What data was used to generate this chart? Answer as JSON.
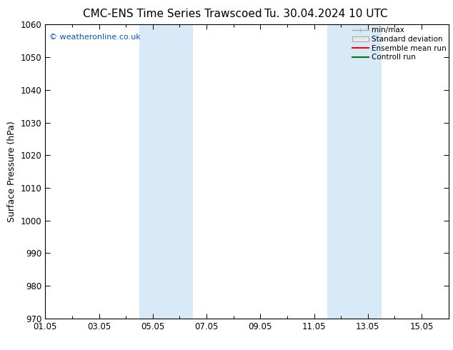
{
  "title": "CMC-ENS Time Series Trawscoed",
  "title2": "Tu. 30.04.2024 10 UTC",
  "ylabel": "Surface Pressure (hPa)",
  "ylim": [
    970,
    1060
  ],
  "yticks": [
    970,
    980,
    990,
    1000,
    1010,
    1020,
    1030,
    1040,
    1050,
    1060
  ],
  "xlim": [
    0,
    15
  ],
  "xtick_labels": [
    "01.05",
    "03.05",
    "05.05",
    "07.05",
    "09.05",
    "11.05",
    "13.05",
    "15.05"
  ],
  "xtick_positions": [
    0,
    2,
    4,
    6,
    8,
    10,
    12,
    14
  ],
  "shaded_bands": [
    {
      "start": 3.5,
      "end": 5.5
    },
    {
      "start": 10.5,
      "end": 12.5
    }
  ],
  "shade_color": "#d8eaf7",
  "bg_color": "#ffffff",
  "watermark": "© weatheronline.co.uk",
  "watermark_color": "#0055cc",
  "legend_items": [
    {
      "label": "min/max",
      "color": "#aaaaaa",
      "lw": 1.0
    },
    {
      "label": "Standard deviation",
      "color": "#cccccc",
      "lw": 1.0
    },
    {
      "label": "Ensemble mean run",
      "color": "#ff0000",
      "lw": 1.5
    },
    {
      "label": "Controll run",
      "color": "#007700",
      "lw": 1.5
    }
  ],
  "tick_fontsize": 8.5,
  "label_fontsize": 9,
  "title_fontsize": 11
}
